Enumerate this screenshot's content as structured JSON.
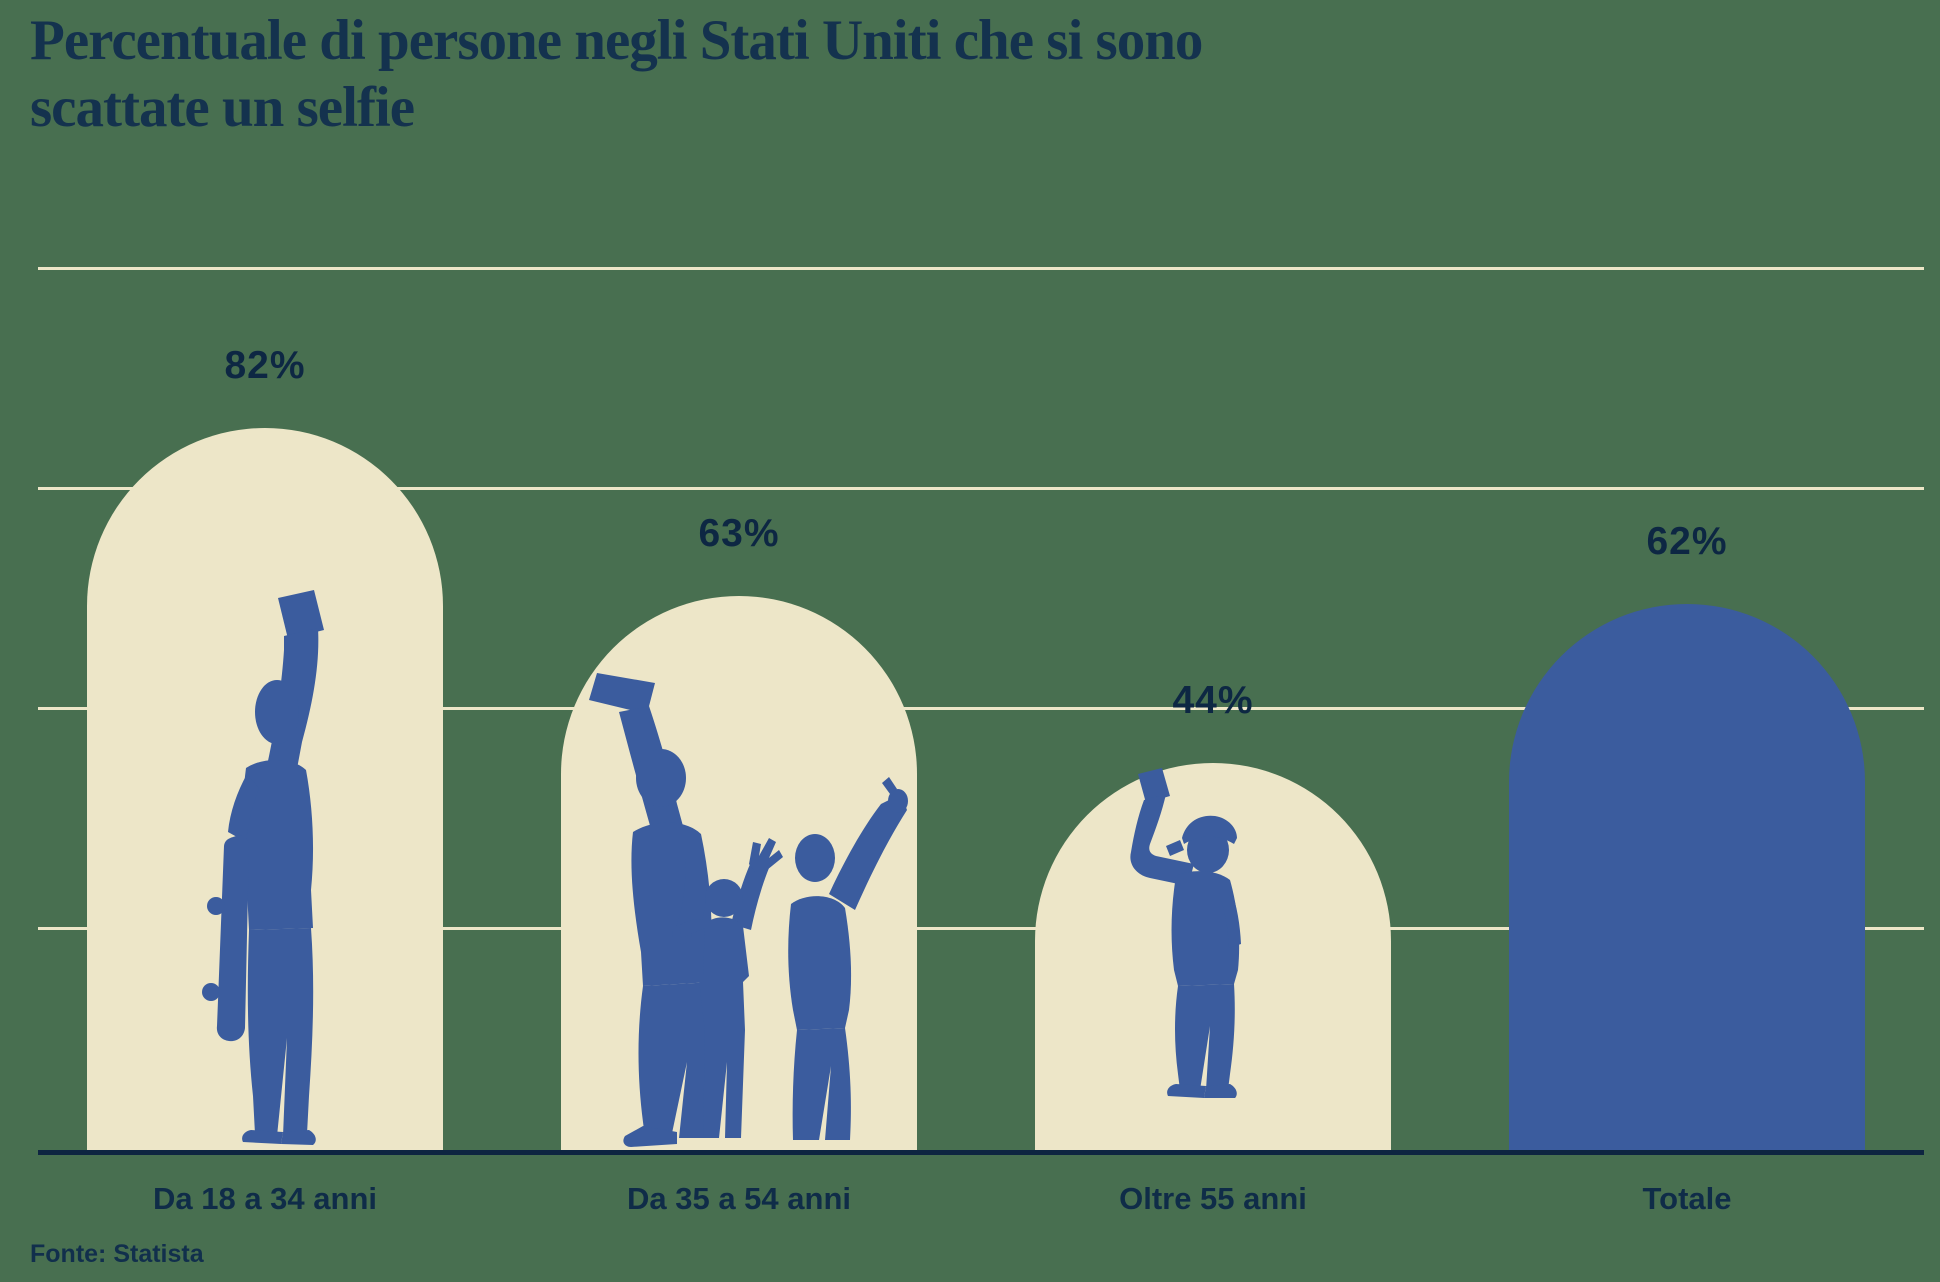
{
  "title": {
    "lines": [
      "Percentuale di persone negli Stati Uniti che si sono",
      "scattate un selfie"
    ]
  },
  "source": "Fonte: Statista",
  "chart_data": {
    "type": "bar",
    "title": "Percentuale di persone negli Stati Uniti che si sono scattate un selfie",
    "categories": [
      "Da 18 a 34 anni",
      "Da 35 a 54 anni",
      "Oltre 55 anni",
      "Totale"
    ],
    "values": [
      82,
      63,
      44,
      62
    ],
    "value_labels": [
      "82%",
      "63%",
      "44%",
      "62%"
    ],
    "xlabel": "",
    "ylabel": "",
    "ylim": [
      0,
      100
    ],
    "gridlines": [
      25,
      50,
      75,
      100
    ],
    "grid": true,
    "legend": false,
    "bar_shape": "dome-top",
    "bar_colors": [
      "#EDE6C8",
      "#EDE6C8",
      "#EDE6C8",
      "#3B5C9E"
    ],
    "illustrations": [
      "young-person-selfie-skateboard",
      "family-selfie",
      "older-man-selfie",
      "none"
    ]
  },
  "colors": {
    "background": "#486F50",
    "bar_cream": "#EDE6C8",
    "bar_blue": "#3B5C9E",
    "silhouette_blue": "#3B5C9E",
    "gridline": "#EDE6C8",
    "axis": "#0E2541",
    "text_navy": "#0F2C48",
    "title_navy": "#14324E"
  }
}
